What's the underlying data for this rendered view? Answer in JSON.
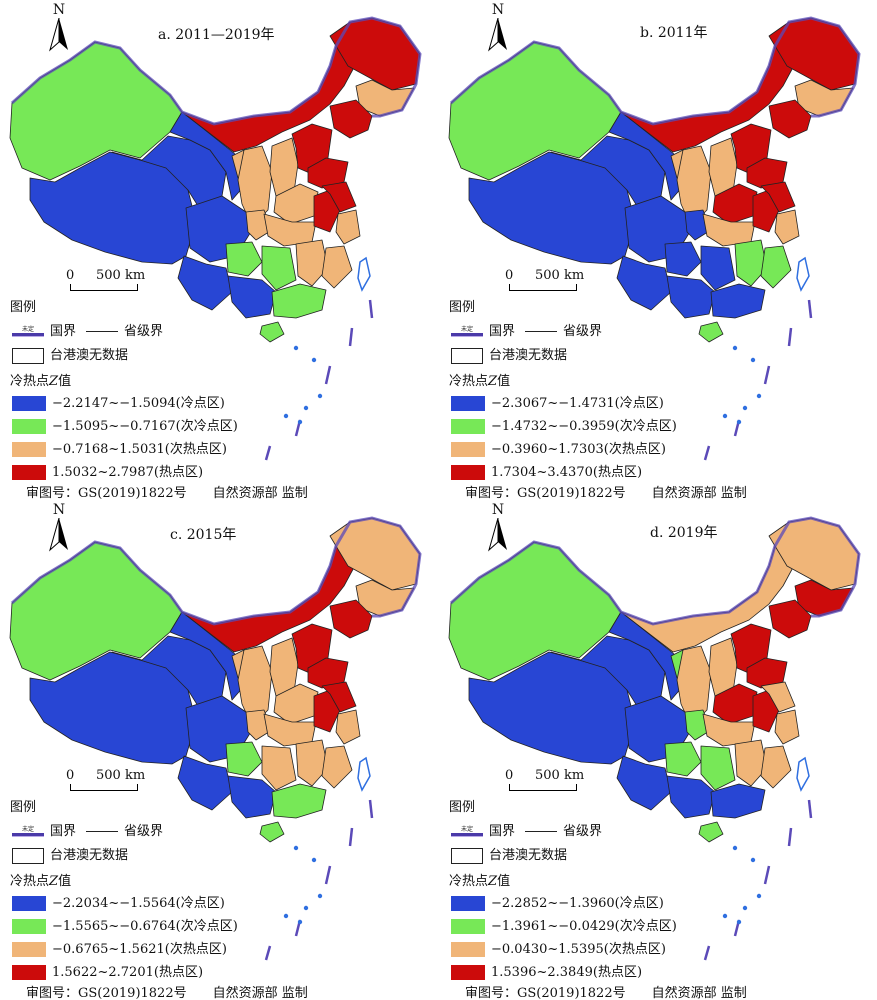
{
  "colors": {
    "cold": "#2846d4",
    "subcold": "#77e857",
    "subhot": "#f0b578",
    "hot": "#cc0b0b",
    "border": "#5b4ab8",
    "island": "#2f6fe0"
  },
  "common": {
    "north": "N",
    "scale_zero": "0",
    "scale_dist": "500 km",
    "legend_title": "图例",
    "national_label": "国界",
    "undetermined_mark": "未定",
    "provincial_label": "省级界",
    "nodata_label": "台港澳无数据",
    "z_title_prefix": "冷热点",
    "z_title_italic": "Z",
    "z_title_suffix": "值",
    "approval_no": "审图号：GS(2019)1822号",
    "approval_org": "自然资源部 监制"
  },
  "panels": [
    {
      "title": "a. 2011—2019年",
      "legend": [
        "−2.2147~−1.5094(冷点区)",
        "−1.5095~−0.7167(次冷点区)",
        "−0.7168~1.5031(次热点区)",
        "1.5032~2.7987(热点区)"
      ],
      "regions": {
        "xinjiang": "subcold",
        "tibet": "cold",
        "qinghai": "cold",
        "gansu": "cold",
        "inner_mongolia": "hot",
        "heilongjiang": "hot",
        "jilin": "subhot",
        "liaoning": "hot",
        "ningxia": "subhot",
        "shaanxi": "subhot",
        "shanxi": "subhot",
        "hebei": "hot",
        "shandong": "hot",
        "henan": "subhot",
        "sichuan": "cold",
        "chongqing": "subhot",
        "hubei": "subhot",
        "anhui": "hot",
        "jiangsu": "hot",
        "zhejiang": "subhot",
        "yunnan": "cold",
        "guizhou": "subcold",
        "hunan": "subcold",
        "jiangxi": "subhot",
        "fujian": "subhot",
        "guangxi": "cold",
        "guangdong": "subcold",
        "hainan": "subcold"
      }
    },
    {
      "title": "b. 2011年",
      "legend": [
        "−2.3067~−1.4731(冷点区)",
        "−1.4732~−0.3959(次冷点区)",
        "−0.3960~1.7303(次热点区)",
        "1.7304~3.4370(热点区)"
      ],
      "regions": {
        "xinjiang": "subcold",
        "tibet": "cold",
        "qinghai": "cold",
        "gansu": "cold",
        "inner_mongolia": "hot",
        "heilongjiang": "hot",
        "jilin": "subhot",
        "liaoning": "hot",
        "ningxia": "subhot",
        "shaanxi": "subhot",
        "shanxi": "subhot",
        "hebei": "hot",
        "shandong": "hot",
        "henan": "hot",
        "sichuan": "cold",
        "chongqing": "cold",
        "hubei": "subhot",
        "anhui": "hot",
        "jiangsu": "hot",
        "zhejiang": "subhot",
        "yunnan": "cold",
        "guizhou": "cold",
        "hunan": "cold",
        "jiangxi": "subcold",
        "fujian": "subcold",
        "guangxi": "cold",
        "guangdong": "cold",
        "hainan": "subcold"
      }
    },
    {
      "title": "c. 2015年",
      "legend": [
        "−2.2034~−1.5564(冷点区)",
        "−1.5565~−0.6764(次冷点区)",
        "−0.6765~1.5621(次热点区)",
        "1.5622~2.7201(热点区)"
      ],
      "regions": {
        "xinjiang": "subcold",
        "tibet": "cold",
        "qinghai": "cold",
        "gansu": "cold",
        "inner_mongolia": "hot",
        "heilongjiang": "subhot",
        "jilin": "subhot",
        "liaoning": "hot",
        "ningxia": "subhot",
        "shaanxi": "subhot",
        "shanxi": "subhot",
        "hebei": "hot",
        "shandong": "hot",
        "henan": "subhot",
        "sichuan": "cold",
        "chongqing": "subhot",
        "hubei": "subhot",
        "anhui": "hot",
        "jiangsu": "hot",
        "zhejiang": "subhot",
        "yunnan": "cold",
        "guizhou": "subcold",
        "hunan": "subhot",
        "jiangxi": "subhot",
        "fujian": "subhot",
        "guangxi": "cold",
        "guangdong": "subcold",
        "hainan": "subcold"
      }
    },
    {
      "title": "d. 2019年",
      "legend": [
        "−2.2852~−1.3960(冷点区)",
        "−1.3961~−0.0429(次冷点区)",
        "−0.0430~1.5395(次热点区)",
        "1.5396~2.3849(热点区)"
      ],
      "regions": {
        "xinjiang": "subcold",
        "tibet": "cold",
        "qinghai": "cold",
        "gansu": "cold",
        "inner_mongolia": "subhot",
        "heilongjiang": "subhot",
        "jilin": "hot",
        "liaoning": "hot",
        "ningxia": "subcold",
        "shaanxi": "subhot",
        "shanxi": "subhot",
        "hebei": "hot",
        "shandong": "hot",
        "henan": "hot",
        "sichuan": "cold",
        "chongqing": "subcold",
        "hubei": "subhot",
        "anhui": "hot",
        "jiangsu": "subhot",
        "zhejiang": "subhot",
        "yunnan": "cold",
        "guizhou": "subcold",
        "hunan": "subcold",
        "jiangxi": "subhot",
        "fujian": "subhot",
        "guangxi": "cold",
        "guangdong": "cold",
        "hainan": "subcold"
      }
    }
  ]
}
